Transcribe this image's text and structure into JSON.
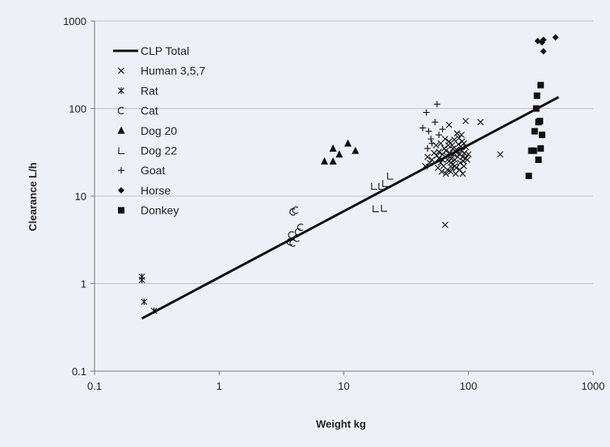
{
  "chart_data": {
    "type": "scatter",
    "xlabel": "Weight kg",
    "ylabel": "Clearance  L/h",
    "xscale": "log",
    "yscale": "log",
    "xlim": [
      0.1,
      1000
    ],
    "ylim": [
      0.1,
      1000
    ],
    "x_ticks": [
      "0.1",
      "1",
      "10",
      "100",
      "1000"
    ],
    "y_ticks": [
      "0.1",
      "1",
      "10",
      "100",
      "1000"
    ],
    "grid": "horizontal",
    "legend_position": "top-left",
    "line": {
      "name": "CLP Total",
      "x": [
        0.24,
        530
      ],
      "y": [
        0.4,
        135
      ]
    },
    "series": [
      {
        "name": "Human 3,5,7",
        "marker": "x",
        "points": [
          [
            65,
            4.7
          ],
          [
            125,
            70
          ],
          [
            180,
            30
          ],
          [
            95,
            72
          ],
          [
            47,
            28
          ],
          [
            45,
            22
          ],
          [
            90,
            18
          ],
          [
            70,
            65
          ],
          [
            60,
            40
          ],
          [
            55,
            38
          ],
          [
            58,
            32
          ],
          [
            62,
            30
          ],
          [
            65,
            28
          ],
          [
            68,
            26
          ],
          [
            70,
            25
          ],
          [
            72,
            24
          ],
          [
            75,
            23
          ],
          [
            78,
            22
          ],
          [
            80,
            21
          ],
          [
            85,
            20
          ],
          [
            65,
            45
          ],
          [
            75,
            35
          ],
          [
            85,
            30
          ],
          [
            90,
            28
          ],
          [
            95,
            27
          ],
          [
            100,
            30
          ],
          [
            60,
            24
          ],
          [
            63,
            22
          ],
          [
            68,
            20
          ],
          [
            72,
            19
          ],
          [
            78,
            26
          ],
          [
            82,
            28
          ],
          [
            88,
            33
          ],
          [
            92,
            40
          ],
          [
            70,
            42
          ],
          [
            74,
            38
          ],
          [
            80,
            34
          ],
          [
            84,
            46
          ],
          [
            88,
            50
          ],
          [
            66,
            33
          ],
          [
            64,
            35
          ],
          [
            76,
            30
          ],
          [
            86,
            24
          ],
          [
            92,
            22
          ],
          [
            96,
            36
          ],
          [
            58,
            27
          ],
          [
            62,
            26
          ],
          [
            69,
            38
          ],
          [
            71,
            31
          ],
          [
            77,
            44
          ],
          [
            81,
            52
          ],
          [
            83,
            39
          ],
          [
            87,
            37
          ],
          [
            93,
            31
          ],
          [
            98,
            26
          ],
          [
            67,
            29
          ],
          [
            73,
            27
          ],
          [
            79,
            32
          ],
          [
            89,
            42
          ],
          [
            91,
            25
          ],
          [
            56,
            29
          ],
          [
            53,
            31
          ],
          [
            51,
            26
          ],
          [
            49,
            24
          ],
          [
            57,
            21
          ],
          [
            61,
            19
          ],
          [
            66,
            18
          ],
          [
            74,
            21
          ],
          [
            79,
            18
          ]
        ]
      },
      {
        "name": "Rat",
        "marker": "asterisk",
        "points": [
          [
            0.24,
            1.2
          ],
          [
            0.24,
            1.1
          ],
          [
            0.25,
            0.62
          ],
          [
            0.3,
            0.49
          ]
        ]
      },
      {
        "name": "Cat",
        "marker": "open-arc",
        "points": [
          [
            3.9,
            6.6
          ],
          [
            4.1,
            6.9
          ],
          [
            3.8,
            3.6
          ],
          [
            4.2,
            3.3
          ],
          [
            3.9,
            2.9
          ],
          [
            4.5,
            4.4
          ],
          [
            4.3,
            3.9
          ],
          [
            3.7,
            3.0
          ]
        ]
      },
      {
        "name": "Dog 20",
        "marker": "triangle",
        "points": [
          [
            7,
            25
          ],
          [
            8.2,
            25
          ],
          [
            8.2,
            35
          ],
          [
            9.2,
            30
          ],
          [
            10.8,
            40
          ],
          [
            12.4,
            33
          ]
        ]
      },
      {
        "name": "Dog 22",
        "marker": "half-triangle",
        "points": [
          [
            17.5,
            13
          ],
          [
            20,
            13
          ],
          [
            21.5,
            14
          ],
          [
            18,
            7.2
          ],
          [
            21,
            7.3
          ],
          [
            23.5,
            17
          ]
        ]
      },
      {
        "name": "Goat",
        "marker": "plus",
        "points": [
          [
            56,
            112
          ],
          [
            46,
            90
          ],
          [
            43,
            60
          ],
          [
            48,
            55
          ],
          [
            54,
            70
          ],
          [
            50,
            45
          ],
          [
            58,
            50
          ],
          [
            62,
            58
          ],
          [
            47,
            35
          ],
          [
            51,
            40
          ]
        ]
      },
      {
        "name": "Horse",
        "marker": "diamond",
        "points": [
          [
            360,
            590
          ],
          [
            400,
            610
          ],
          [
            390,
            570
          ],
          [
            500,
            650
          ],
          [
            400,
            450
          ]
        ]
      },
      {
        "name": "Donkey",
        "marker": "square",
        "points": [
          [
            380,
            185
          ],
          [
            355,
            140
          ],
          [
            350,
            100
          ],
          [
            365,
            70
          ],
          [
            375,
            72
          ],
          [
            340,
            55
          ],
          [
            390,
            50
          ],
          [
            380,
            35
          ],
          [
            320,
            33
          ],
          [
            335,
            33
          ],
          [
            365,
            26
          ],
          [
            305,
            17
          ]
        ]
      }
    ]
  }
}
